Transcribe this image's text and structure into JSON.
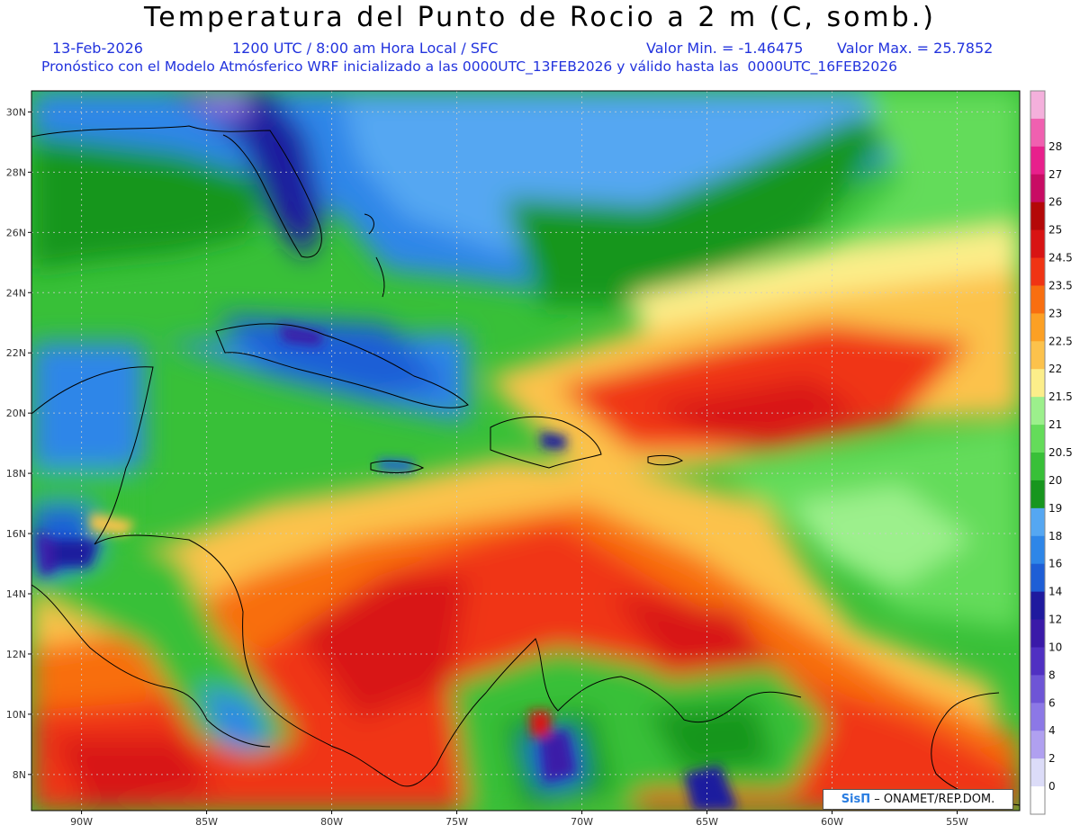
{
  "header": {
    "title": "Temperatura del Punto de Rocio a 2 m (C, somb.)",
    "date": "13-Feb-2026",
    "time": "1200 UTC / 8:00 am Hora Local / SFC",
    "vmin": "Valor Min. = -1.46475",
    "vmax": "Valor Max. = 25.7852",
    "forecast": "Pronóstico con el Modelo Atmósferico WRF inicializado a las 0000UTC_13FEB2026 y válido hasta las  0000UTC_16FEB2026"
  },
  "map": {
    "lon_range": [
      -92,
      -52.5
    ],
    "lat_range": [
      6.8,
      30.7
    ],
    "lat_ticks": [
      "30N",
      "28N",
      "26N",
      "24N",
      "22N",
      "20N",
      "18N",
      "16N",
      "14N",
      "12N",
      "10N",
      "8N"
    ],
    "lat_values": [
      30,
      28,
      26,
      24,
      22,
      20,
      18,
      16,
      14,
      12,
      10,
      8
    ],
    "lon_ticks": [
      "90W",
      "85W",
      "80W",
      "75W",
      "70W",
      "65W",
      "60W",
      "55W"
    ],
    "lon_values": [
      -90,
      -85,
      -80,
      -75,
      -70,
      -65,
      -60,
      -55
    ]
  },
  "colorbar": {
    "levels": [
      "0",
      "2",
      "4",
      "6",
      "8",
      "10",
      "12",
      "14",
      "16",
      "18",
      "19",
      "20",
      "20.5",
      "21",
      "21.5",
      "22",
      "22.5",
      "23",
      "23.5",
      "24.5",
      "25",
      "26",
      "27",
      "28"
    ],
    "colors": [
      "#ffffff",
      "#dcdcf8",
      "#b0a0f0",
      "#8c78e6",
      "#6e55d6",
      "#5030c2",
      "#3a1aa8",
      "#1f1a9e",
      "#1e5ed6",
      "#2e86e8",
      "#55a7f2",
      "#17961e",
      "#38c038",
      "#64dc5a",
      "#9cf08c",
      "#fcee8a",
      "#fcc24c",
      "#fca024",
      "#f86e10",
      "#f03414",
      "#d81414",
      "#b40808",
      "#c80c64",
      "#e8208c",
      "#f060b0",
      "#f4b0dc"
    ]
  },
  "credit": {
    "brand": "SisΠ",
    "text": "–  ONAMET/REP.DOM."
  }
}
